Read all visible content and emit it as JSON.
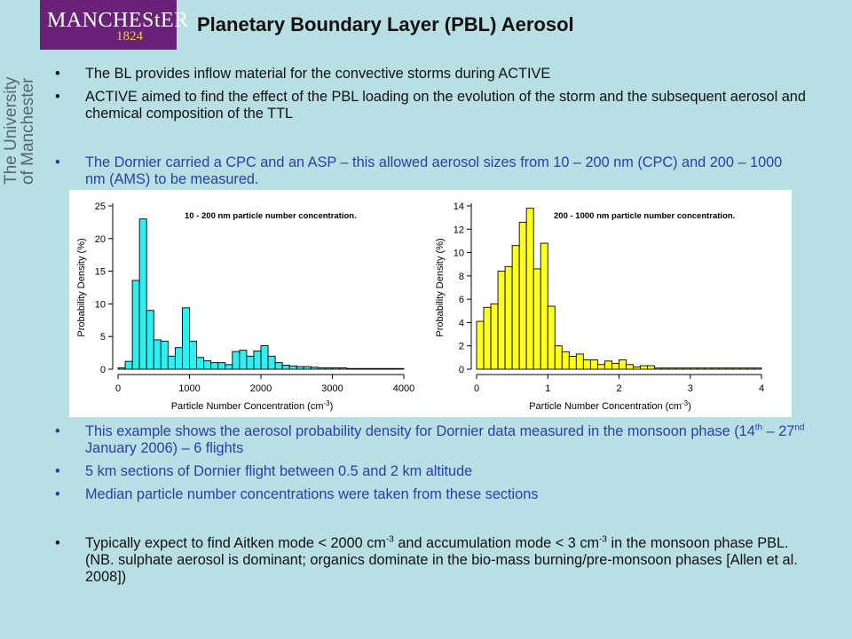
{
  "logo": {
    "name": "MANCHEStER",
    "year": "1824"
  },
  "side_logo": {
    "line1": "The University",
    "line2": "of Manchester"
  },
  "title": "Planetary Boundary Layer (PBL) Aerosol",
  "bullet_symbol": "•",
  "bullets_top": [
    {
      "text": "The BL provides inflow material for the convective storms during ACTIVE"
    },
    {
      "text": "ACTIVE aimed to find the effect of the PBL loading on the evolution of the storm and the subsequent aerosol and chemical composition of the TTL"
    }
  ],
  "bullet_cpc": {
    "text": "The Dornier carried a CPC and an ASP – this allowed aerosol sizes from 10 – 200 nm (CPC) and 200 – 1000 nm (AMS) to be measured."
  },
  "bullets_mid": [
    {
      "p1": "This example shows the aerosol probability density for Dornier data measured in the monsoon phase (14",
      "s1": "th",
      "p2": " – 27",
      "s2": "nd",
      "p3": " January 2006) –  6 flights"
    },
    {
      "text": "5 km sections of Dornier flight between 0.5 and 2 km altitude"
    },
    {
      "text": "Median particle number concentrations were taken from these sections"
    }
  ],
  "bullet_last": {
    "p1": "Typically expect to find Aitken mode < 2000 cm",
    "s1": "-3",
    "p2": " and accumulation mode < 3 cm",
    "s2": "-3",
    "p3": " in the monsoon phase PBL. (NB. sulphate aerosol is dominant; organics dominate in the bio-mass burning/pre-monsoon phases [Allen et al. 2008])"
  },
  "chart_data": [
    {
      "type": "bar",
      "title": "10 - 200 nm particle number concentration.",
      "xlabel": "Particle Number Concentration (cm",
      "xlabel_sup": "-3",
      "xlabel_end": ")",
      "ylabel": "Probability Density (%)",
      "xlim": [
        0,
        4000
      ],
      "ylim": [
        0,
        25
      ],
      "xticks": [
        0,
        1000,
        2000,
        3000,
        4000
      ],
      "yticks": [
        0,
        5,
        10,
        15,
        20,
        25
      ],
      "bin_width": 100,
      "bin_starts": [
        0,
        100,
        200,
        300,
        400,
        500,
        600,
        700,
        800,
        900,
        1000,
        1100,
        1200,
        1300,
        1400,
        1500,
        1600,
        1700,
        1800,
        1900,
        2000,
        2100,
        2200,
        2300,
        2400,
        2500,
        2600,
        2700,
        2800,
        2900,
        3000,
        3100,
        3200,
        3300,
        3400,
        3500,
        3600,
        3700,
        3800,
        3900
      ],
      "values": [
        0.2,
        1.2,
        13.6,
        23.0,
        9.0,
        4.5,
        4.3,
        2.0,
        3.3,
        9.4,
        4.3,
        1.8,
        1.3,
        1.0,
        1.0,
        0.7,
        2.7,
        2.9,
        2.0,
        2.8,
        3.6,
        2.0,
        1.0,
        0.6,
        0.5,
        0.4,
        0.4,
        0.3,
        0.2,
        0.2,
        0.2,
        0.2,
        0.1,
        0.1,
        0.1,
        0.1,
        0.1,
        0.1,
        0.1,
        0.1
      ],
      "bar_color": "#33eeee"
    },
    {
      "type": "bar",
      "title": "200 - 1000 nm particle number concentration.",
      "xlabel": "Particle Number Concentration (cm",
      "xlabel_sup": "-3",
      "xlabel_end": ")",
      "ylabel": "Probability Density (%)",
      "xlim": [
        0,
        4
      ],
      "ylim": [
        0,
        14
      ],
      "xticks": [
        0,
        1,
        2,
        3,
        4
      ],
      "yticks": [
        0,
        2,
        4,
        6,
        8,
        10,
        12,
        14
      ],
      "bin_width": 0.1,
      "bin_starts": [
        0,
        0.1,
        0.2,
        0.3,
        0.4,
        0.5,
        0.6,
        0.7,
        0.8,
        0.9,
        1.0,
        1.1,
        1.2,
        1.3,
        1.4,
        1.5,
        1.6,
        1.7,
        1.8,
        1.9,
        2.0,
        2.1,
        2.2,
        2.3,
        2.4,
        2.5,
        2.6,
        2.7,
        2.8,
        2.9,
        3.0,
        3.1,
        3.2,
        3.3,
        3.4,
        3.5,
        3.6,
        3.7,
        3.8,
        3.9
      ],
      "values": [
        4.1,
        5.3,
        5.6,
        8.4,
        8.8,
        10.6,
        12.6,
        13.8,
        8.6,
        10.8,
        5.4,
        2.0,
        1.5,
        1.1,
        1.3,
        0.8,
        0.8,
        0.4,
        0.7,
        0.5,
        0.8,
        0.4,
        0.2,
        0.3,
        0.3,
        0.1,
        0.1,
        0.1,
        0.1,
        0.1,
        0.1,
        0.1,
        0.1,
        0.1,
        0.1,
        0.1,
        0.1,
        0.1,
        0.1,
        0.1
      ],
      "bar_color": "#ffff22"
    }
  ]
}
